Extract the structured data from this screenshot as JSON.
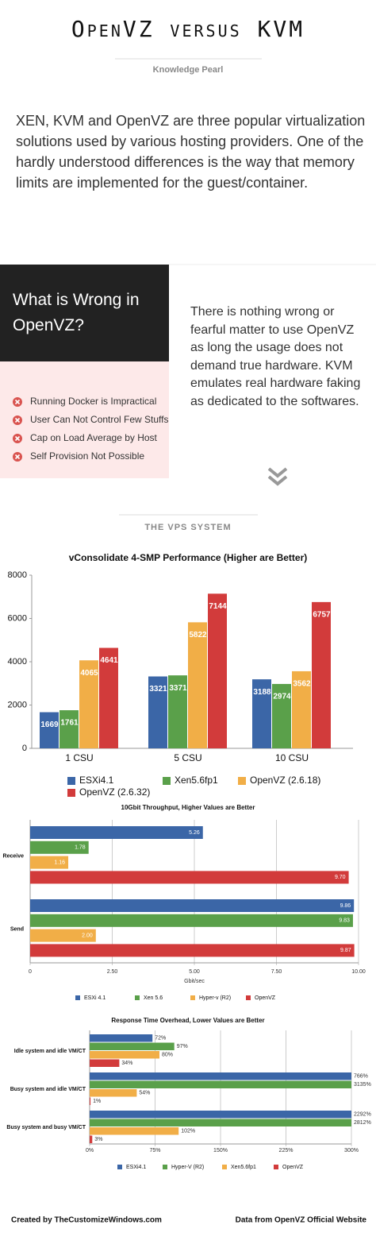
{
  "header": {
    "title": "OpenVZ versus KVM",
    "subtitle": "Knowledge Pearl"
  },
  "intro": "XEN, KVM and OpenVZ are three popular virtualization solutions used by various hosting providers. One of the hardly understood differences is the way that memory limits are implemented for the guest/container.",
  "wrong_box": {
    "title": "What is Wrong in OpenVZ?",
    "items": [
      "Running Docker is Impractical",
      "User Can Not Control Few Stuffs",
      "Cap on Load Average by Host",
      "Self Provision Not Possible"
    ]
  },
  "right_text": "There is nothing wrong or fearful matter to use OpenVZ as long the usage does not demand true hardware. KVM emulates real hardware faking as dedicated to the softwares.",
  "section_title": "THE VPS SYSTEM",
  "chart_data": [
    {
      "type": "bar",
      "title": "vConsolidate 4-SMP Performance (Higher are Better)",
      "categories": [
        "1 CSU",
        "5 CSU",
        "10 CSU"
      ],
      "series": [
        {
          "name": "ESXi4.1",
          "color": "#3b66a7",
          "values": [
            1669,
            3321,
            3188
          ]
        },
        {
          "name": "Xen5.6fp1",
          "color": "#5aa04a",
          "values": [
            1761,
            3371,
            2974
          ]
        },
        {
          "name": "OpenVZ (2.6.18)",
          "color": "#f1ae47",
          "values": [
            4065,
            5822,
            3562
          ]
        },
        {
          "name": "OpenVZ (2.6.32)",
          "color": "#d23b3b",
          "values": [
            4641,
            7144,
            6757
          ]
        }
      ],
      "ylim": [
        0,
        8000
      ],
      "yticks": [
        0,
        2000,
        4000,
        6000,
        8000
      ],
      "grid": false
    },
    {
      "type": "barh",
      "title": "10Gbit Throughput, Higher Values are Better",
      "categories": [
        "Receive",
        "Send"
      ],
      "series": [
        {
          "name": "ESXi 4.1",
          "color": "#3b66a7",
          "values": [
            5.26,
            9.86
          ],
          "value_labels": [
            "5.26",
            "9.86"
          ]
        },
        {
          "name": "Xen 5.6",
          "color": "#5aa04a",
          "values": [
            1.78,
            9.83
          ],
          "value_labels": [
            "1.78",
            "9.83"
          ]
        },
        {
          "name": "Hyper-v (R2)",
          "color": "#f1ae47",
          "values": [
            1.16,
            2.0
          ],
          "value_labels": [
            "1.16",
            "2.00"
          ]
        },
        {
          "name": "OpenVZ",
          "color": "#d23b3b",
          "values": [
            9.7,
            9.87
          ],
          "value_labels": [
            "9.70",
            "9.87"
          ]
        }
      ],
      "xlabel": "Gbit/sec",
      "xlim": [
        0,
        10
      ],
      "xticks": [
        {
          "value": 0,
          "label": "0"
        },
        {
          "value": 2.5,
          "label": "2.50"
        },
        {
          "value": 5,
          "label": "5.00"
        },
        {
          "value": 7.5,
          "label": "7.50"
        },
        {
          "value": 10,
          "label": "10.00"
        }
      ],
      "grid": true
    },
    {
      "type": "barh",
      "title": "Response Time Overhead, Lower Values are Better",
      "categories": [
        "Idle system and idle VM/CT",
        "Busy system and idle VM/CT",
        "Busy system and busy VM/CT"
      ],
      "series": [
        {
          "name": "ESXi4.1",
          "color": "#3b66a7",
          "values": [
            72,
            766,
            2292
          ],
          "value_labels": [
            "72%",
            "766%",
            "2292%"
          ]
        },
        {
          "name": "Hyper-V (R2)",
          "color": "#5aa04a",
          "values": [
            97,
            3135,
            2812
          ],
          "value_labels": [
            "97%",
            "3135%",
            "2812%"
          ]
        },
        {
          "name": "Xen5.6fp1",
          "color": "#f1ae47",
          "values": [
            80,
            54,
            102
          ],
          "value_labels": [
            "80%",
            "54%",
            "102%"
          ]
        },
        {
          "name": "OpenVZ",
          "color": "#d23b3b",
          "values": [
            34,
            1,
            3
          ],
          "value_labels": [
            "34%",
            "1%",
            "3%"
          ]
        }
      ],
      "xlim": [
        0,
        300
      ],
      "xticks": [
        {
          "value": 0,
          "label": "0%"
        },
        {
          "value": 75,
          "label": "75%"
        },
        {
          "value": 150,
          "label": "150%"
        },
        {
          "value": 225,
          "label": "225%"
        },
        {
          "value": 300,
          "label": "300%"
        }
      ],
      "grid": true
    }
  ],
  "footer": {
    "left": "Created by TheCustomizeWindows.com",
    "right": "Data from OpenVZ Official Website"
  }
}
